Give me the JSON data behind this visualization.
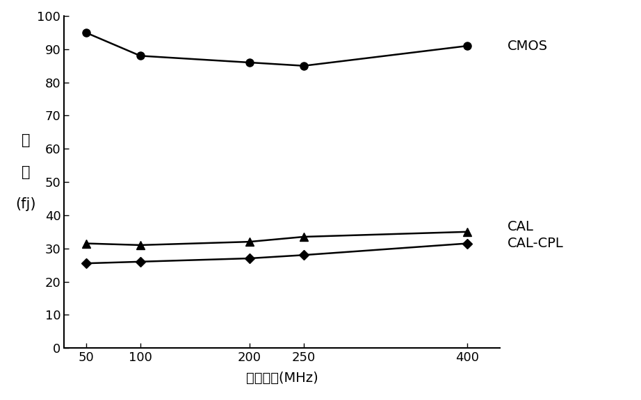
{
  "x": [
    50,
    100,
    200,
    250,
    400
  ],
  "cmos_y": [
    95,
    88,
    86,
    85,
    91
  ],
  "cal_y": [
    31.5,
    31,
    32,
    33.5,
    35
  ],
  "cal_cpl_y": [
    25.5,
    26,
    27,
    28,
    31.5
  ],
  "xlabel": "工作频率(MHz)",
  "ylabel_line1": "能",
  "ylabel_line2": "耗",
  "ylabel_line3": "(fj)",
  "ylim": [
    0,
    100
  ],
  "yticks": [
    0,
    10,
    20,
    30,
    40,
    50,
    60,
    70,
    80,
    90,
    100
  ],
  "xticks": [
    50,
    100,
    200,
    250,
    400
  ],
  "label_cmos": "CMOS",
  "label_cal": "CAL",
  "label_cal_cpl": "CAL-CPL",
  "line_color": "#000000",
  "bg_color": "#ffffff",
  "marker_cmos": "o",
  "marker_cal": "^",
  "marker_cal_cpl": "D",
  "markersize": 8,
  "linewidth": 1.8,
  "label_fontsize": 14,
  "tick_fontsize": 13,
  "annot_fontsize": 14
}
